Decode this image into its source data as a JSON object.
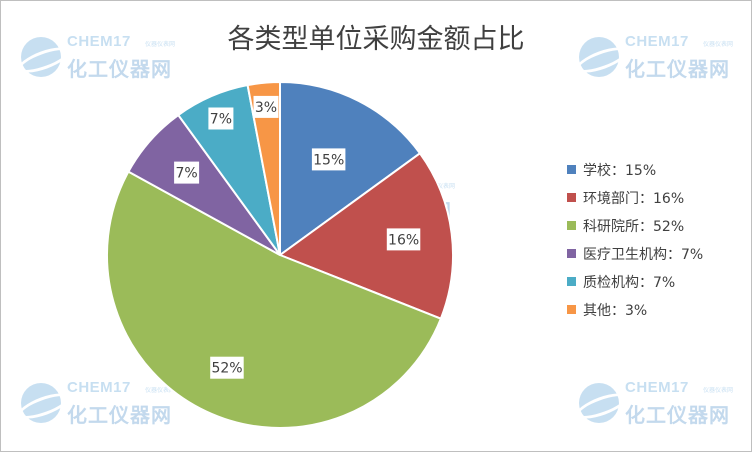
{
  "watermark": {
    "brand": "CHEM17",
    "tagline": "仪器仪表网",
    "name_cn": "化工仪器网"
  },
  "chart_data": {
    "type": "pie",
    "title": "各类型单位采购金额占比",
    "categories": [
      "学校",
      "环境部门",
      "科研院所",
      "医疗卫生机构",
      "质检机构",
      "其他"
    ],
    "values": [
      15,
      16,
      52,
      7,
      7,
      3
    ],
    "data_labels": [
      "15%",
      "16%",
      "52%",
      "7%",
      "7%",
      "3%"
    ],
    "legend_labels": [
      "学校：15%",
      "环境部门：16%",
      "科研院所：52%",
      "医疗卫生机构：7%",
      "质检机构：7%",
      "其他：3%"
    ],
    "colors": [
      "#4f81bd",
      "#c0504d",
      "#9bbb59",
      "#8064a2",
      "#4bacc6",
      "#f79646"
    ],
    "legend_position": "right",
    "start_angle": "12 o'clock",
    "direction": "clockwise"
  }
}
